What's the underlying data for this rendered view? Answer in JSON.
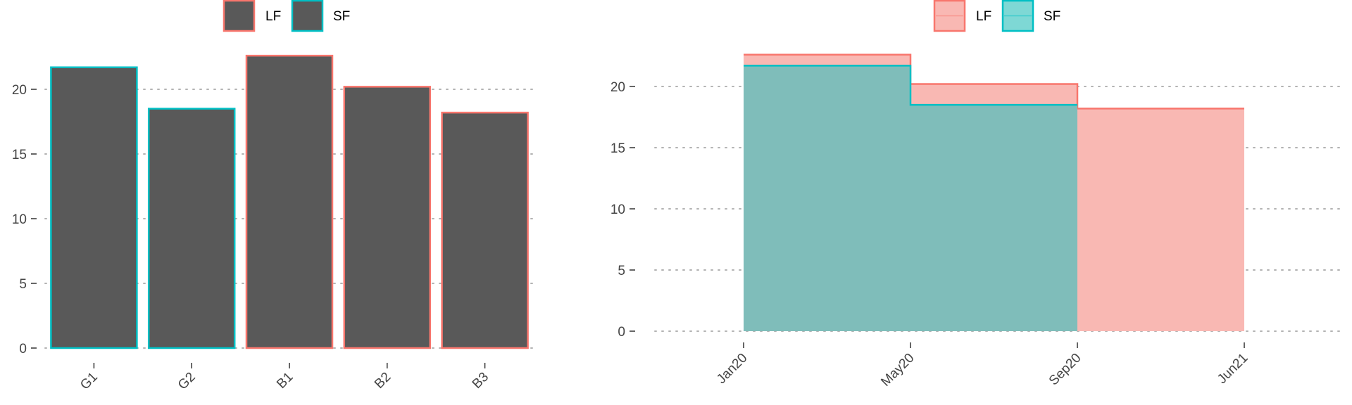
{
  "chart_data": [
    {
      "type": "bar",
      "title": "",
      "xlabel": "",
      "ylabel": "",
      "legend": {
        "position": "top",
        "entries": [
          "LF",
          "SF"
        ]
      },
      "categories": [
        "G1",
        "G2",
        "B1",
        "B2",
        "B3"
      ],
      "values": [
        21.7,
        18.5,
        22.6,
        20.2,
        18.2
      ],
      "group": [
        "SF",
        "SF",
        "LF",
        "LF",
        "LF"
      ],
      "fill_color": "#595959",
      "ylim": [
        0,
        23.5
      ],
      "yticks": [
        0,
        5,
        10,
        15,
        20
      ],
      "grid": "horizontal dotted"
    },
    {
      "type": "area",
      "step": true,
      "title": "",
      "xlabel": "",
      "ylabel": "",
      "legend": {
        "position": "top",
        "entries": [
          "LF",
          "SF"
        ]
      },
      "x_ticks": [
        "Jan20",
        "May20",
        "Sep20",
        "Jun21"
      ],
      "series": [
        {
          "name": "LF",
          "x": [
            "Jan20",
            "May20",
            "Sep20",
            "Jun21"
          ],
          "values": [
            22.6,
            20.2,
            18.2,
            18.2
          ]
        },
        {
          "name": "SF",
          "x": [
            "Jan20",
            "May20",
            "Sep20"
          ],
          "values": [
            21.7,
            18.5,
            18.5
          ]
        }
      ],
      "ylim": [
        0,
        23.5
      ],
      "yticks": [
        0,
        5,
        10,
        15,
        20
      ],
      "grid": "horizontal dotted"
    }
  ],
  "colors": {
    "LF": "#F8766D",
    "SF": "#00BFC4",
    "LF_fill": "#F9B8B3",
    "SF_fill": "#7FBDBA",
    "SF_legend_fill": "#7ED8D5",
    "bar_fill": "#595959",
    "grid": "#B3B3B3",
    "tick_text": "#444444"
  }
}
